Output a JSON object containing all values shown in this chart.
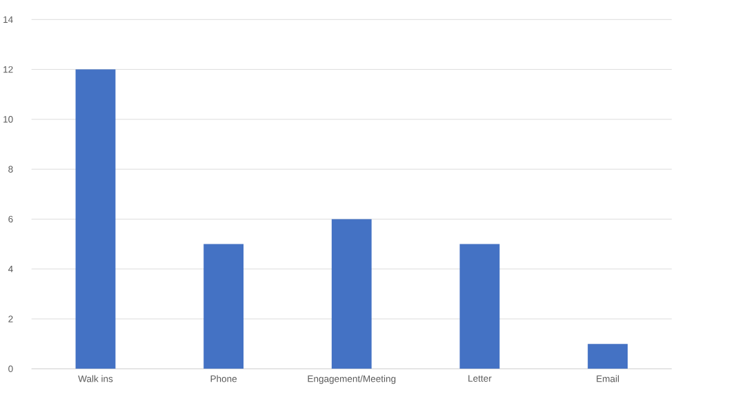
{
  "chart_data": {
    "type": "bar",
    "categories": [
      "Walk ins",
      "Phone",
      "Engagement/Meeting",
      "Letter",
      "Email"
    ],
    "values": [
      12,
      5,
      6,
      5,
      1
    ],
    "color": "#4472c4",
    "ylim": [
      0,
      14
    ],
    "yticks": [
      0,
      2,
      4,
      6,
      8,
      10,
      12,
      14
    ],
    "grid": "y"
  }
}
